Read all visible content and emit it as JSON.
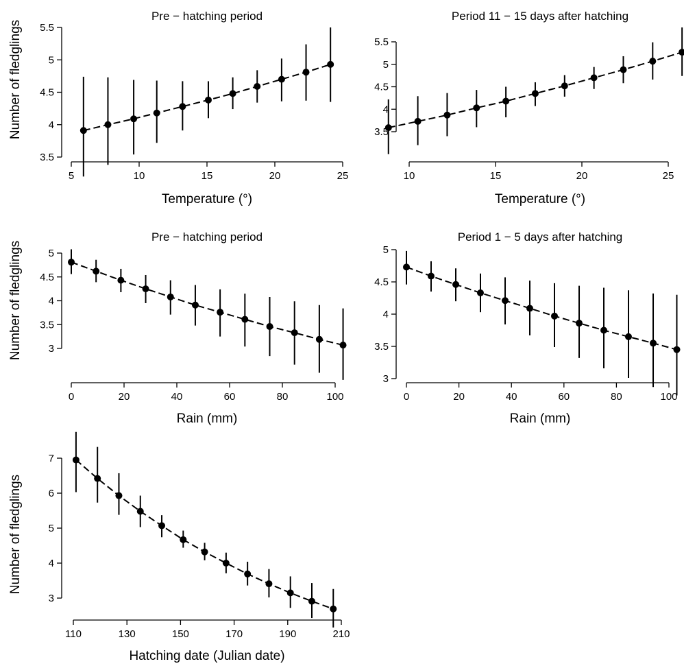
{
  "figure": {
    "ylabel": "Number of fledglings"
  },
  "chart_data": [
    {
      "type": "scatter",
      "title": "Pre −  hatching period",
      "xlabel": "Temperature (°)",
      "ylabel": "Number of fledglings",
      "xlim": [
        5,
        25
      ],
      "ylim": [
        3.5,
        5.5
      ],
      "xticks": [
        5,
        10,
        15,
        20,
        25
      ],
      "xtick_labels": [
        "5",
        "10",
        "15",
        "20",
        "25"
      ],
      "yticks": [
        3.5,
        4,
        4.5,
        5,
        5.5
      ],
      "ytick_labels": [
        "3.5",
        "4",
        "4.5",
        "5",
        "5.5"
      ],
      "x": [
        5.9,
        7.7,
        9.6,
        11.3,
        13.2,
        15.1,
        16.9,
        18.7,
        20.5,
        22.3,
        24.1
      ],
      "y": [
        3.91,
        4.0,
        4.09,
        4.18,
        4.28,
        4.38,
        4.48,
        4.59,
        4.7,
        4.81,
        4.93
      ],
      "ylow": [
        3.2,
        3.38,
        3.54,
        3.72,
        3.91,
        4.1,
        4.24,
        4.34,
        4.36,
        4.37,
        4.35
      ],
      "yhigh": [
        4.74,
        4.73,
        4.69,
        4.68,
        4.67,
        4.67,
        4.73,
        4.84,
        5.02,
        5.24,
        5.5
      ]
    },
    {
      "type": "scatter",
      "title": "Period 11 −  15 days after hatching",
      "xlabel": "Temperature (°)",
      "ylabel": "",
      "xlim": [
        8.5,
        26
      ],
      "ylim": [
        3.5,
        5.5
      ],
      "xticks": [
        10,
        15,
        20,
        25
      ],
      "xtick_labels": [
        "10",
        "15",
        "20",
        "25"
      ],
      "yticks": [
        3.5,
        4,
        4.5,
        5,
        5.5
      ],
      "ytick_labels": [
        "3.5",
        "4",
        "4.5",
        "5",
        "5.5"
      ],
      "x": [
        8.8,
        10.5,
        12.2,
        13.9,
        15.6,
        17.3,
        19.0,
        20.7,
        22.4,
        24.1,
        25.8
      ],
      "y": [
        3.59,
        3.73,
        3.87,
        4.03,
        4.18,
        4.35,
        4.52,
        4.7,
        4.88,
        5.07,
        5.27
      ],
      "ylow": [
        3.0,
        3.2,
        3.4,
        3.6,
        3.82,
        4.07,
        4.28,
        4.45,
        4.58,
        4.66,
        4.74
      ],
      "yhigh": [
        4.22,
        4.29,
        4.36,
        4.43,
        4.5,
        4.6,
        4.76,
        4.94,
        5.18,
        5.49,
        5.82
      ]
    },
    {
      "type": "scatter",
      "title": "Pre − hatching period",
      "xlabel": "Rain (mm)",
      "ylabel": "Number of fledglings",
      "xlim": [
        0,
        103
      ],
      "ylim": [
        3,
        5
      ],
      "xticks": [
        0,
        20,
        40,
        60,
        80,
        100
      ],
      "xtick_labels": [
        "0",
        "20",
        "40",
        "60",
        "80",
        "100"
      ],
      "yticks": [
        3,
        3.5,
        4,
        4.5,
        5
      ],
      "ytick_labels": [
        "3",
        "3.5",
        "4",
        "4.5",
        "5"
      ],
      "x": [
        0,
        9.4,
        18.8,
        28.2,
        37.6,
        47.0,
        56.4,
        65.8,
        75.2,
        84.6,
        94.0,
        103.0
      ],
      "y": [
        4.81,
        4.62,
        4.43,
        4.25,
        4.08,
        3.91,
        3.76,
        3.61,
        3.46,
        3.33,
        3.19,
        3.07
      ],
      "ylow": [
        4.56,
        4.39,
        4.18,
        3.95,
        3.71,
        3.48,
        3.25,
        3.04,
        2.84,
        2.66,
        2.49,
        2.34
      ],
      "yhigh": [
        5.08,
        4.86,
        4.67,
        4.54,
        4.43,
        4.33,
        4.24,
        4.15,
        4.08,
        3.99,
        3.91,
        3.84
      ]
    },
    {
      "type": "scatter",
      "title": "Period 1 − 5 days after hatching",
      "xlabel": "Rain (mm)",
      "ylabel": "",
      "xlim": [
        0,
        103
      ],
      "ylim": [
        3,
        5
      ],
      "xticks": [
        0,
        20,
        40,
        60,
        80,
        100
      ],
      "xtick_labels": [
        "0",
        "20",
        "40",
        "60",
        "80",
        "100"
      ],
      "yticks": [
        3,
        3.5,
        4,
        4.5,
        5
      ],
      "ytick_labels": [
        "3",
        "3.5",
        "4",
        "4.5",
        "5"
      ],
      "x": [
        0,
        9.4,
        18.8,
        28.2,
        37.6,
        47.0,
        56.4,
        65.8,
        75.2,
        84.6,
        94.0,
        103.0
      ],
      "y": [
        4.73,
        4.59,
        4.46,
        4.33,
        4.21,
        4.09,
        3.97,
        3.86,
        3.75,
        3.65,
        3.55,
        3.45
      ],
      "ylow": [
        4.46,
        4.35,
        4.2,
        4.03,
        3.84,
        3.67,
        3.49,
        3.32,
        3.16,
        3.01,
        2.87,
        2.74
      ],
      "yhigh": [
        4.98,
        4.82,
        4.71,
        4.63,
        4.57,
        4.52,
        4.48,
        4.44,
        4.41,
        4.37,
        4.32,
        4.3
      ]
    },
    {
      "type": "scatter",
      "title": "",
      "xlabel": "Hatching date (Julian date)",
      "ylabel": "Number of fledglings",
      "xlim": [
        110,
        210
      ],
      "ylim": [
        3,
        7
      ],
      "xticks": [
        110,
        130,
        150,
        170,
        190,
        210
      ],
      "xtick_labels": [
        "110",
        "130",
        "150",
        "170",
        "190",
        "210"
      ],
      "yticks": [
        3,
        4,
        5,
        6,
        7
      ],
      "ytick_labels": [
        "3",
        "4",
        "5",
        "6",
        "7"
      ],
      "x": [
        111,
        119,
        127,
        135,
        143,
        151,
        159,
        167,
        175,
        183,
        191,
        199,
        207
      ],
      "y": [
        6.95,
        6.42,
        5.93,
        5.48,
        5.07,
        4.67,
        4.32,
        4.0,
        3.69,
        3.41,
        3.15,
        2.91,
        2.69
      ],
      "ylow": [
        6.03,
        5.73,
        5.38,
        5.03,
        4.74,
        4.44,
        4.08,
        3.71,
        3.36,
        3.02,
        2.72,
        2.43,
        2.16
      ],
      "yhigh": [
        7.75,
        7.32,
        6.57,
        5.93,
        5.37,
        4.93,
        4.58,
        4.3,
        4.04,
        3.83,
        3.62,
        3.43,
        3.26
      ]
    }
  ]
}
